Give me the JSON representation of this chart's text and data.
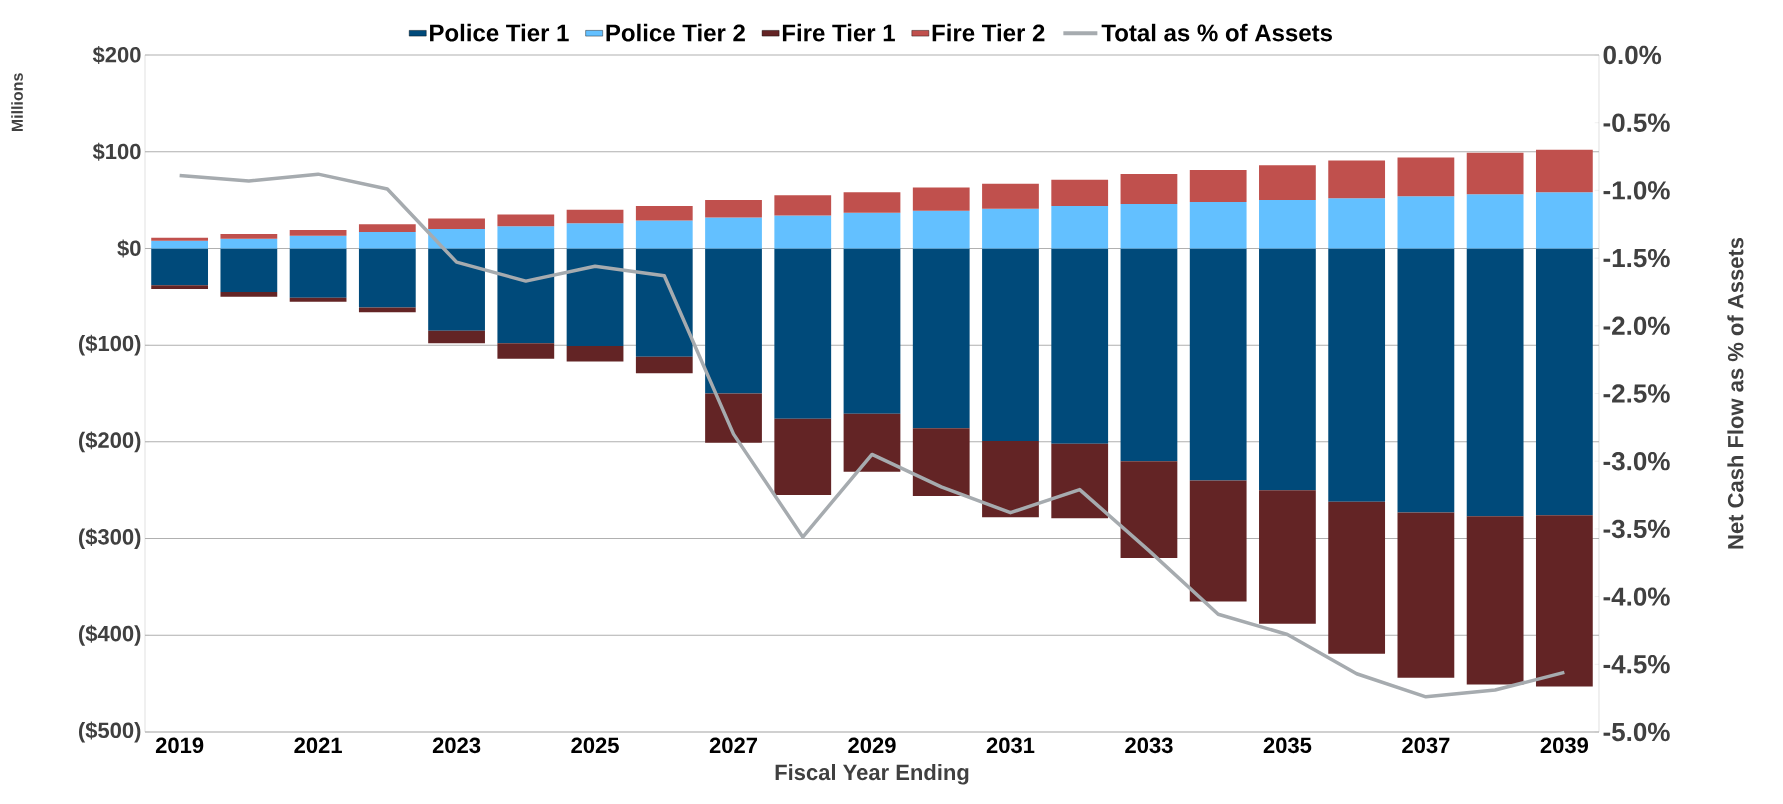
{
  "chart_data": {
    "type": "bar",
    "stacked": true,
    "xlabel": "Fiscal Year Ending",
    "ylabel": "Millions",
    "y2label": "Net Cash Flow as % of Assets",
    "categories": [
      "2019",
      null,
      "2021",
      null,
      "2023",
      null,
      "2025",
      null,
      "2027",
      null,
      "2029",
      null,
      "2031",
      null,
      "2033",
      null,
      "2035",
      null,
      "2037",
      null,
      "2039"
    ],
    "series": [
      {
        "name": "Police Tier 1",
        "color": "#004a7a",
        "values": [
          -38,
          -45,
          -51,
          -61,
          -85,
          -98,
          -101,
          -112,
          -150,
          -176,
          -171,
          -186,
          -199,
          -202,
          -220,
          -240,
          -250,
          -262,
          -273,
          -277,
          -276
        ]
      },
      {
        "name": "Police Tier 2",
        "color": "#63c0ff",
        "values": [
          8,
          10,
          13,
          17,
          20,
          23,
          26,
          29,
          32,
          34,
          37,
          39,
          41,
          44,
          46,
          48,
          50,
          52,
          54,
          56,
          58
        ]
      },
      {
        "name": "Fire Tier 1",
        "color": "#632425",
        "values": [
          -4,
          -5,
          -4,
          -5,
          -13,
          -16,
          -16,
          -17,
          -51,
          -79,
          -60,
          -70,
          -79,
          -77,
          -100,
          -125,
          -138,
          -157,
          -171,
          -174,
          -177
        ]
      },
      {
        "name": "Fire Tier 2",
        "color": "#c0504d",
        "values": [
          3,
          5,
          6,
          8,
          11,
          12,
          14,
          15,
          18,
          21,
          21,
          24,
          26,
          27,
          31,
          33,
          36,
          39,
          40,
          43,
          44
        ]
      },
      {
        "name": "Total as % of Assets",
        "type": "line",
        "axis": "y2",
        "color": "#a6abaf",
        "values": [
          -0.89,
          -0.93,
          -0.88,
          -0.99,
          -1.53,
          -1.67,
          -1.56,
          -1.63,
          -2.8,
          -3.56,
          -2.95,
          -3.19,
          -3.38,
          -3.21,
          -3.66,
          -4.13,
          -4.28,
          -4.57,
          -4.74,
          -4.69,
          -4.56
        ]
      }
    ],
    "ylim": [
      -500,
      200
    ],
    "yticks": [
      {
        "value": 200,
        "label": "$200"
      },
      {
        "value": 100,
        "label": "$100"
      },
      {
        "value": 0,
        "label": "$0"
      },
      {
        "value": -100,
        "label": "($100)"
      },
      {
        "value": -200,
        "label": "($200)"
      },
      {
        "value": -300,
        "label": "($300)"
      },
      {
        "value": -400,
        "label": "($400)"
      },
      {
        "value": -500,
        "label": "($500)"
      }
    ],
    "y2lim": [
      -5,
      0
    ],
    "y2ticks": [
      {
        "value": 0,
        "label": "0.0%"
      },
      {
        "value": -0.5,
        "label": "-0.5%"
      },
      {
        "value": -1,
        "label": "-1.0%"
      },
      {
        "value": -1.5,
        "label": "-1.5%"
      },
      {
        "value": -2,
        "label": "-2.0%"
      },
      {
        "value": -2.5,
        "label": "-2.5%"
      },
      {
        "value": -3,
        "label": "-3.0%"
      },
      {
        "value": -3.5,
        "label": "-3.5%"
      },
      {
        "value": -4,
        "label": "-4.0%"
      },
      {
        "value": -4.5,
        "label": "-4.5%"
      },
      {
        "value": -5,
        "label": "-5.0%"
      }
    ],
    "grid": "y",
    "legend": "top",
    "marker": "none",
    "line_style": "solid"
  }
}
